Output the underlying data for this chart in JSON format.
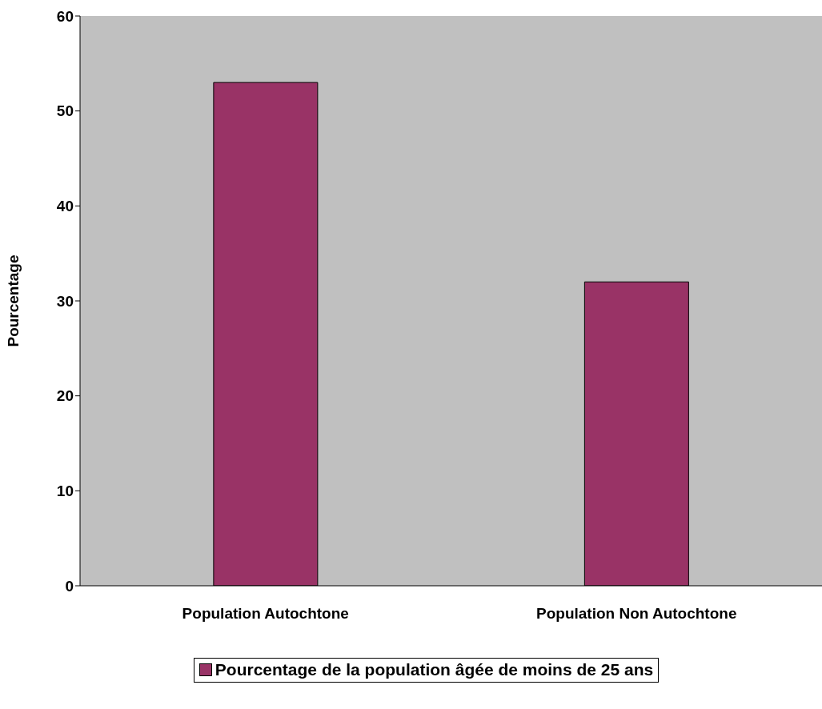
{
  "chart_data": {
    "type": "bar",
    "ylabel": "Pourcentage",
    "categories": [
      "Population Autochtone",
      "Population Non Autochtone"
    ],
    "series": [
      {
        "name": "Pourcentage de la population âgée de moins de 25 ans",
        "color": "#993366",
        "values": [
          53,
          32
        ]
      }
    ],
    "ylim": [
      0,
      60
    ],
    "yticks": [
      0,
      10,
      20,
      30,
      40,
      50,
      60
    ],
    "legend": "bottom"
  }
}
